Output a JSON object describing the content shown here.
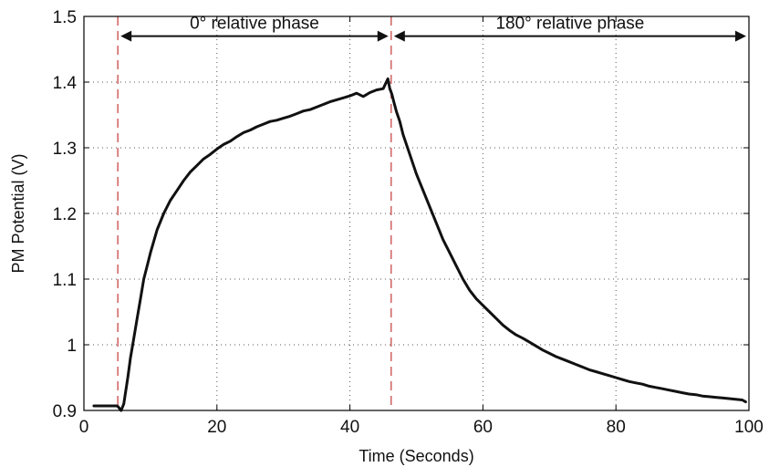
{
  "chart_data": {
    "type": "line",
    "title": "",
    "xlabel": "Time (Seconds)",
    "ylabel": "PM Potential (V)",
    "xlim": [
      0,
      100
    ],
    "ylim": [
      0.9,
      1.5
    ],
    "xticks": [
      0,
      20,
      40,
      60,
      80,
      100
    ],
    "xtick_labels": [
      "0",
      "20",
      "40",
      "60",
      "80",
      "100"
    ],
    "yticks": [
      0.9,
      1.0,
      1.1,
      1.2,
      1.3,
      1.4,
      1.5
    ],
    "ytick_labels": [
      "0.9",
      "1",
      "1.1",
      "1.2",
      "1.3",
      "1.4",
      "1.5"
    ],
    "grid": true,
    "colors": {
      "line": "#111111",
      "marker": "#d46a6a",
      "grid": "#555555",
      "axis": "#000000"
    },
    "series": [
      {
        "x": [
          1.5,
          3,
          5,
          5.2,
          5.6,
          6.0,
          6.3,
          6.6,
          7,
          7.5,
          8,
          8.5,
          9,
          9.5,
          10,
          11,
          12,
          13,
          14,
          15,
          16,
          17,
          18,
          19,
          20,
          21,
          22,
          23,
          24,
          25,
          26,
          27,
          28,
          29,
          30,
          31,
          32,
          33,
          34,
          35,
          36,
          37,
          38,
          39,
          40,
          41,
          42,
          43,
          44,
          45,
          45.7,
          46.0,
          46.3,
          46.6,
          47,
          47.5,
          48,
          49,
          50,
          51,
          52,
          53,
          54,
          55,
          56,
          57,
          58,
          59,
          60,
          61,
          62,
          63,
          64,
          65,
          66,
          67,
          68,
          69,
          70,
          71,
          72,
          73,
          74,
          75,
          76,
          77,
          78,
          79,
          80,
          81,
          82,
          83,
          84,
          85,
          86,
          87,
          88,
          89,
          90,
          91,
          92,
          93,
          94,
          95,
          96,
          97,
          98,
          99,
          99.5
        ],
        "y": [
          0.907,
          0.907,
          0.907,
          0.905,
          0.9,
          0.91,
          0.93,
          0.95,
          0.98,
          1.01,
          1.04,
          1.07,
          1.1,
          1.12,
          1.14,
          1.175,
          1.2,
          1.22,
          1.235,
          1.25,
          1.263,
          1.273,
          1.283,
          1.29,
          1.298,
          1.305,
          1.31,
          1.317,
          1.323,
          1.327,
          1.332,
          1.336,
          1.34,
          1.342,
          1.345,
          1.348,
          1.352,
          1.356,
          1.358,
          1.362,
          1.366,
          1.37,
          1.373,
          1.376,
          1.379,
          1.383,
          1.378,
          1.384,
          1.388,
          1.39,
          1.405,
          1.39,
          1.382,
          1.37,
          1.355,
          1.34,
          1.32,
          1.29,
          1.26,
          1.235,
          1.21,
          1.185,
          1.16,
          1.14,
          1.12,
          1.1,
          1.083,
          1.07,
          1.06,
          1.05,
          1.04,
          1.03,
          1.022,
          1.015,
          1.01,
          1.004,
          0.998,
          0.992,
          0.987,
          0.982,
          0.978,
          0.974,
          0.97,
          0.966,
          0.962,
          0.959,
          0.956,
          0.953,
          0.95,
          0.947,
          0.944,
          0.942,
          0.94,
          0.937,
          0.935,
          0.933,
          0.931,
          0.929,
          0.927,
          0.925,
          0.924,
          0.922,
          0.921,
          0.92,
          0.919,
          0.918,
          0.917,
          0.916,
          0.913
        ]
      }
    ],
    "vlines": [
      5.1,
      46.2
    ],
    "annotations": [
      {
        "text": "0° relative phase",
        "x_from": 5.1,
        "x_to": 46.2,
        "y": 1.47
      },
      {
        "text": "180° relative phase",
        "x_from": 46.2,
        "x_to": 100,
        "y": 1.47
      }
    ]
  }
}
